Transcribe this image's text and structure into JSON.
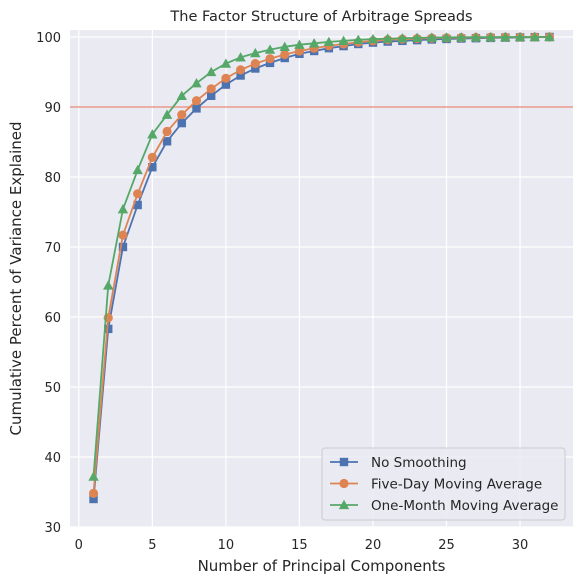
{
  "chart_data": {
    "type": "line",
    "title": "The Factor Structure of Arbitrage Spreads",
    "xlabel": "Number of Principal Components",
    "ylabel": "Cumulative Percent of Variance Explained",
    "xlim": [
      -0.6,
      33.6
    ],
    "ylim": [
      30,
      101
    ],
    "xticks": [
      0,
      5,
      10,
      15,
      20,
      25,
      30
    ],
    "yticks": [
      30,
      40,
      50,
      60,
      70,
      80,
      90,
      100
    ],
    "grid": true,
    "legend_position": "lower-right",
    "reference_line": {
      "y": 90,
      "color": "#e8998d"
    },
    "x": [
      1,
      2,
      3,
      4,
      5,
      6,
      7,
      8,
      9,
      10,
      11,
      12,
      13,
      14,
      15,
      16,
      17,
      18,
      19,
      20,
      21,
      22,
      23,
      24,
      25,
      26,
      27,
      28,
      29,
      30,
      31,
      32
    ],
    "series": [
      {
        "name": "No Smoothing",
        "color": "#4c72b0",
        "marker": "square",
        "values": [
          34.0,
          58.3,
          70.0,
          76.0,
          81.4,
          85.1,
          87.7,
          89.8,
          91.6,
          93.2,
          94.5,
          95.5,
          96.3,
          97.0,
          97.6,
          98.0,
          98.4,
          98.7,
          99.0,
          99.2,
          99.35,
          99.45,
          99.55,
          99.65,
          99.72,
          99.78,
          99.83,
          99.87,
          99.91,
          99.94,
          99.97,
          100.0
        ]
      },
      {
        "name": "Five-Day Moving Average",
        "color": "#dd8452",
        "marker": "circle",
        "values": [
          34.8,
          59.9,
          71.7,
          77.6,
          82.8,
          86.5,
          88.9,
          90.9,
          92.6,
          94.1,
          95.3,
          96.2,
          96.9,
          97.5,
          98.0,
          98.4,
          98.75,
          99.0,
          99.25,
          99.45,
          99.6,
          99.7,
          99.78,
          99.84,
          99.88,
          99.91,
          99.94,
          99.96,
          99.98,
          99.99,
          100.0,
          100.0
        ]
      },
      {
        "name": "One-Month Moving Average",
        "color": "#55a868",
        "marker": "triangle",
        "values": [
          37.2,
          64.5,
          75.4,
          81.0,
          86.1,
          88.9,
          91.6,
          93.4,
          95.0,
          96.2,
          97.1,
          97.7,
          98.2,
          98.6,
          98.9,
          99.1,
          99.3,
          99.45,
          99.6,
          99.7,
          99.77,
          99.83,
          99.88,
          99.92,
          99.94,
          99.96,
          99.97,
          99.98,
          99.99,
          100.0,
          100.0,
          100.0
        ]
      }
    ]
  }
}
